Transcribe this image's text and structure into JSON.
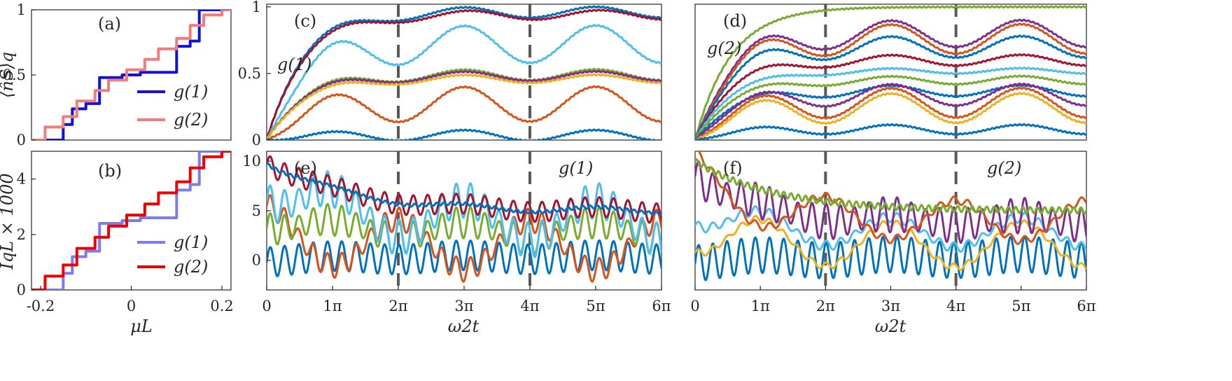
{
  "chart_data": [
    {
      "id": "a",
      "panel_label": "(a)",
      "type": "line",
      "xlim": [
        -0.22,
        0.22
      ],
      "ylim": [
        0,
        1
      ],
      "xticks": [],
      "yticks": [
        "0",
        "0.5",
        "1"
      ],
      "ylabel": "⟨n̂S⟩q",
      "xlabel": "",
      "legend": [
        "g(1)",
        "g(2)"
      ],
      "legend_position": "bottom-right",
      "colors": [
        "#1010e0",
        "#f27b7b"
      ],
      "series": [
        {
          "name": "g(1)",
          "type": "step",
          "x": [
            -0.22,
            -0.15,
            -0.15,
            -0.13,
            -0.13,
            -0.1,
            -0.1,
            -0.07,
            -0.07,
            -0.02,
            -0.02,
            0.02,
            0.02,
            0.07,
            0.07,
            0.1,
            0.1,
            0.13,
            0.13,
            0.15,
            0.15,
            0.22
          ],
          "y": [
            0,
            0,
            0.12,
            0.12,
            0.24,
            0.24,
            0.28,
            0.28,
            0.48,
            0.48,
            0.5,
            0.5,
            0.52,
            0.52,
            0.52,
            0.52,
            0.72,
            0.72,
            0.76,
            0.76,
            1,
            1
          ]
        },
        {
          "name": "g(2)",
          "type": "step",
          "x": [
            -0.22,
            -0.19,
            -0.19,
            -0.15,
            -0.15,
            -0.12,
            -0.12,
            -0.08,
            -0.08,
            -0.05,
            -0.05,
            -0.01,
            -0.01,
            0.03,
            0.03,
            0.06,
            0.06,
            0.1,
            0.1,
            0.13,
            0.13,
            0.16,
            0.16,
            0.2,
            0.2,
            0.22
          ],
          "y": [
            0,
            0,
            0.1,
            0.1,
            0.18,
            0.18,
            0.3,
            0.3,
            0.38,
            0.38,
            0.46,
            0.46,
            0.54,
            0.54,
            0.62,
            0.62,
            0.7,
            0.7,
            0.78,
            0.78,
            0.88,
            0.88,
            0.96,
            0.96,
            1,
            1
          ]
        }
      ]
    },
    {
      "id": "b",
      "panel_label": "(b)",
      "type": "line",
      "xlim": [
        -0.22,
        0.22
      ],
      "ylim": [
        0,
        5
      ],
      "xticks": [
        "-0.2",
        "0",
        "0.2"
      ],
      "yticks": [
        "0",
        "2",
        "4"
      ],
      "ylabel": "IqL × 1000",
      "xlabel": "μL",
      "legend": [
        "g(1)",
        "g(2)"
      ],
      "legend_position": "bottom-right",
      "colors": [
        "#7b7bf0",
        "#f00000"
      ],
      "series": [
        {
          "name": "g(1)",
          "type": "step",
          "x": [
            -0.22,
            -0.15,
            -0.15,
            -0.13,
            -0.13,
            -0.1,
            -0.1,
            -0.07,
            -0.07,
            -0.02,
            -0.02,
            0.02,
            0.02,
            0.07,
            0.07,
            0.1,
            0.1,
            0.13,
            0.13,
            0.15,
            0.15,
            0.22
          ],
          "y": [
            0,
            0,
            0.6,
            0.6,
            1.2,
            1.2,
            1.4,
            1.4,
            2.4,
            2.4,
            2.5,
            2.5,
            2.6,
            2.6,
            2.6,
            2.6,
            3.6,
            3.6,
            3.8,
            3.8,
            5,
            5
          ]
        },
        {
          "name": "g(2)",
          "type": "step",
          "x": [
            -0.22,
            -0.19,
            -0.19,
            -0.15,
            -0.15,
            -0.12,
            -0.12,
            -0.08,
            -0.08,
            -0.05,
            -0.05,
            -0.01,
            -0.01,
            0.03,
            0.03,
            0.06,
            0.06,
            0.1,
            0.1,
            0.13,
            0.13,
            0.16,
            0.16,
            0.2,
            0.2,
            0.22
          ],
          "y": [
            0,
            0,
            0.5,
            0.5,
            0.9,
            0.9,
            1.5,
            1.5,
            1.9,
            1.9,
            2.3,
            2.3,
            2.7,
            2.7,
            3.1,
            3.1,
            3.5,
            3.5,
            3.9,
            3.9,
            4.4,
            4.4,
            4.8,
            4.8,
            5,
            5
          ]
        }
      ]
    },
    {
      "id": "c",
      "panel_label": "(c)",
      "type": "line",
      "annotation": "g(1)",
      "xlim": [
        0,
        6
      ],
      "x_unit": "π",
      "ylim": [
        0,
        1.02
      ],
      "xticks": [],
      "yticks": [
        "0",
        "0.5",
        "1"
      ],
      "dashed_vlines": [
        2,
        4
      ],
      "series": [
        {
          "name": "c1",
          "color": "#0072BD",
          "model": "rise",
          "base": 0.96,
          "amp": 0.04,
          "phase": 0
        },
        {
          "name": "c2",
          "color": "#A2142F",
          "model": "rise",
          "base": 0.94,
          "amp": 0.035,
          "phase": 0.2
        },
        {
          "name": "c3",
          "color": "#4DBEEE",
          "model": "osc",
          "base": 0.72,
          "amp": 0.14,
          "phase": 0
        },
        {
          "name": "c4",
          "color": "#77AC30",
          "model": "flat",
          "base": 0.49,
          "amp": 0.04,
          "phase": 0
        },
        {
          "name": "c5",
          "color": "#7E2F8E",
          "model": "flat",
          "base": 0.48,
          "amp": 0.035,
          "phase": 0
        },
        {
          "name": "c6",
          "color": "#EDB120",
          "model": "flat",
          "base": 0.46,
          "amp": 0.03,
          "phase": 0
        },
        {
          "name": "c7",
          "color": "#D95319",
          "model": "osc",
          "base": 0.27,
          "amp": 0.13,
          "phase": 0
        },
        {
          "name": "c8",
          "color": "#0072BD",
          "model": "osc",
          "base": 0.035,
          "amp": 0.04,
          "phase": 0
        }
      ]
    },
    {
      "id": "d",
      "panel_label": "(d)",
      "type": "line",
      "annotation": "g(2)",
      "xlim": [
        0,
        6
      ],
      "x_unit": "π",
      "ylim": [
        0,
        1.02
      ],
      "xticks": [],
      "yticks": [],
      "dashed_vlines": [
        2,
        4
      ],
      "series": [
        {
          "name": "d1",
          "color": "#77AC30",
          "model": "rise",
          "base": 1.0,
          "amp": 0.0,
          "phase": 0
        },
        {
          "name": "d2",
          "color": "#7E2F8E",
          "model": "osc",
          "base": 0.8,
          "amp": 0.1,
          "phase": 0
        },
        {
          "name": "d3",
          "color": "#D95319",
          "model": "osc",
          "base": 0.76,
          "amp": 0.11,
          "phase": 0
        },
        {
          "name": "d4",
          "color": "#0072BD",
          "model": "osc",
          "base": 0.7,
          "amp": 0.08,
          "phase": 0
        },
        {
          "name": "d5",
          "color": "#A2142F",
          "model": "osc",
          "base": 0.6,
          "amp": 0.04,
          "phase": 0
        },
        {
          "name": "d6",
          "color": "#4DBEEE",
          "model": "flat",
          "base": 0.52,
          "amp": 0.02,
          "phase": 0
        },
        {
          "name": "d7",
          "color": "#77AC30",
          "model": "flat",
          "base": 0.45,
          "amp": 0.03,
          "phase": 0
        },
        {
          "name": "d8",
          "color": "#0072BD",
          "model": "flat",
          "base": 0.37,
          "amp": 0.04,
          "phase": 0
        },
        {
          "name": "d9",
          "color": "#7E2F8E",
          "model": "osc",
          "base": 0.34,
          "amp": 0.08,
          "phase": 0
        },
        {
          "name": "d10",
          "color": "#D95319",
          "model": "osc",
          "base": 0.28,
          "amp": 0.11,
          "phase": 0
        },
        {
          "name": "d11",
          "color": "#EDB120",
          "model": "osc",
          "base": 0.24,
          "amp": 0.11,
          "phase": 0
        },
        {
          "name": "d12",
          "color": "#0072BD",
          "model": "osc",
          "base": 0.08,
          "amp": 0.035,
          "phase": 0
        }
      ]
    },
    {
      "id": "e",
      "panel_label": "(e)",
      "type": "line",
      "annotation": "g(1)",
      "xlim": [
        0,
        6
      ],
      "x_unit": "π",
      "ylim": [
        -3,
        11
      ],
      "xticks": [
        "0",
        "1π",
        "2π",
        "3π",
        "4π",
        "5π",
        "6π"
      ],
      "yticks": [
        "0",
        "5",
        "10"
      ],
      "xlabel": "ω2t",
      "dashed_vlines": [
        2,
        4
      ],
      "series": [
        {
          "name": "e1",
          "color": "#0072BD",
          "model": "fastosc",
          "base": 0.3,
          "amp": 1.5,
          "slow_amp": 0.2,
          "phase": 0,
          "start": 0
        },
        {
          "name": "e2",
          "color": "#D95319",
          "model": "slowfast",
          "base": 1.5,
          "amp": 1.2,
          "slow_amp": 2.5,
          "phase": 3.14,
          "start": 3
        },
        {
          "name": "e3",
          "color": "#77AC30",
          "model": "slowfast",
          "base": 3.0,
          "amp": 1.6,
          "slow_amp": 0.8,
          "phase": 0,
          "start": 4
        },
        {
          "name": "e4",
          "color": "#4DBEEE",
          "model": "slowfast",
          "base": 4.0,
          "amp": 1.8,
          "slow_amp": 2.0,
          "phase": 0,
          "start": 8
        },
        {
          "name": "e5",
          "color": "#A2142F",
          "model": "decayfast",
          "base": 5.0,
          "amp": 1.0,
          "slow_amp": 0.3,
          "phase": 0,
          "start": 10
        },
        {
          "name": "e6",
          "color": "#0072BD",
          "model": "decay",
          "base": 5.0,
          "amp": 0.15,
          "slow_amp": 0.3,
          "phase": 0,
          "start": 10
        }
      ]
    },
    {
      "id": "f",
      "panel_label": "(f)",
      "type": "line",
      "annotation": "g(2)",
      "xlim": [
        0,
        6
      ],
      "x_unit": "π",
      "ylim": [
        -3,
        11
      ],
      "xticks": [
        "0",
        "1π",
        "2π",
        "3π",
        "4π",
        "5π",
        "6π"
      ],
      "yticks": [],
      "xlabel": "ω2t",
      "dashed_vlines": [
        2,
        4
      ],
      "series": [
        {
          "name": "f1",
          "color": "#0072BD",
          "model": "fastosc",
          "base": 0.3,
          "amp": 1.8,
          "slow_amp": 0.3,
          "phase": 0,
          "start": 0
        },
        {
          "name": "f2",
          "color": "#EDB120",
          "model": "slowfast",
          "base": 1.5,
          "amp": 0.35,
          "slow_amp": 2.2,
          "phase": 0,
          "start": 3
        },
        {
          "name": "f3",
          "color": "#4DBEEE",
          "model": "slowfast",
          "base": 2.8,
          "amp": 0.5,
          "slow_amp": 1.5,
          "phase": 0,
          "start": 5
        },
        {
          "name": "f4",
          "color": "#7E2F8E",
          "model": "slowfast",
          "base": 4.0,
          "amp": 1.8,
          "slow_amp": 0.5,
          "phase": 0,
          "start": 9
        },
        {
          "name": "f5",
          "color": "#D95319",
          "model": "slowfast",
          "base": 4.0,
          "amp": 0.4,
          "slow_amp": 2.0,
          "phase": 3.14,
          "start": 9
        },
        {
          "name": "f6",
          "color": "#77AC30",
          "model": "decay",
          "base": 5.0,
          "amp": 0.3,
          "slow_amp": 0.0,
          "phase": 0,
          "start": 10
        }
      ]
    }
  ],
  "shared_labels": {
    "ylabel_top": "⟨n̂S⟩q",
    "ylabel_bottom": "IqL × 1000",
    "xlabel_left": "μL",
    "xlabel_mid": "ω2t",
    "xlabel_right": "ω2t"
  }
}
